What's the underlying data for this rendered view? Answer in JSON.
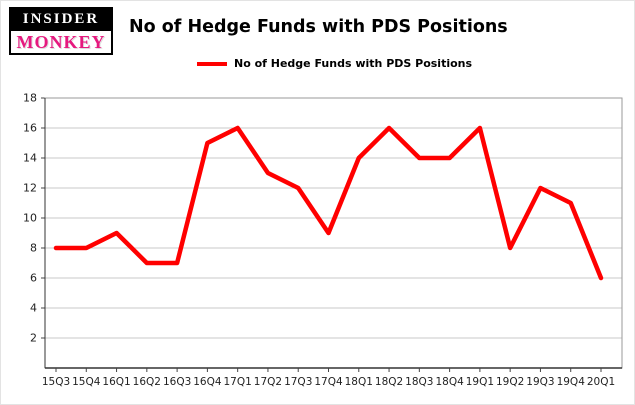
{
  "logo": {
    "line1": "INSIDER",
    "line2": "MONKEY",
    "monkey_color": "#e6197f"
  },
  "header": {
    "title": "No of Hedge Funds with PDS Positions"
  },
  "legend": {
    "label": "No of Hedge Funds with PDS Positions",
    "line_color": "#ff0000"
  },
  "chart_data": {
    "type": "line",
    "title": "No of Hedge Funds with PDS Positions",
    "categories": [
      "15Q3",
      "15Q4",
      "16Q1",
      "16Q2",
      "16Q3",
      "16Q4",
      "17Q1",
      "17Q2",
      "17Q3",
      "17Q4",
      "18Q1",
      "18Q2",
      "18Q3",
      "18Q4",
      "19Q1",
      "19Q2",
      "19Q3",
      "19Q4",
      "20Q1"
    ],
    "series": [
      {
        "name": "No of Hedge Funds with PDS Positions",
        "color": "#ff0000",
        "values": [
          8,
          8,
          9,
          7,
          7,
          15,
          16,
          13,
          12,
          9,
          14,
          16,
          14,
          14,
          16,
          8,
          12,
          11,
          6
        ]
      }
    ],
    "xlabel": "",
    "ylabel": "",
    "ylim": [
      0,
      18
    ],
    "yticks": [
      2,
      4,
      6,
      8,
      10,
      12,
      14,
      16,
      18
    ],
    "grid": true,
    "legend_position": "top"
  }
}
